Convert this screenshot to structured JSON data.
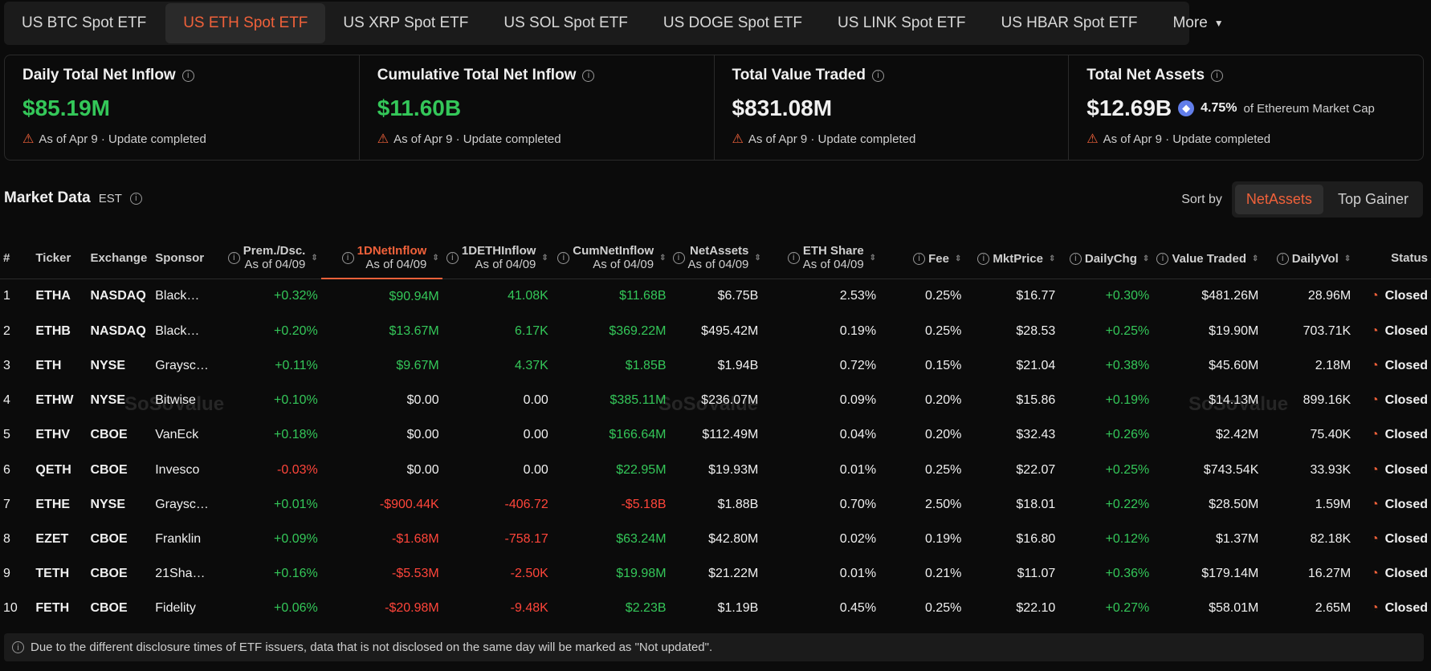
{
  "tabs": [
    {
      "label": "US BTC Spot ETF",
      "active": false
    },
    {
      "label": "US ETH Spot ETF",
      "active": true
    },
    {
      "label": "US XRP Spot ETF",
      "active": false
    },
    {
      "label": "US SOL Spot ETF",
      "active": false
    },
    {
      "label": "US DOGE Spot ETF",
      "active": false
    },
    {
      "label": "US LINK Spot ETF",
      "active": false
    },
    {
      "label": "US HBAR Spot ETF",
      "active": false
    },
    {
      "label": "More",
      "active": false
    }
  ],
  "summary": [
    {
      "title": "Daily Total Net Inflow",
      "value": "$85.19M",
      "color": "green",
      "status": "As of Apr 9 · Update completed"
    },
    {
      "title": "Cumulative Total Net Inflow",
      "value": "$11.60B",
      "color": "green",
      "status": "As of Apr 9 · Update completed"
    },
    {
      "title": "Total Value Traded",
      "value": "$831.08M",
      "color": "white",
      "status": "As of Apr 9 · Update completed"
    },
    {
      "title": "Total Net Assets",
      "value": "$12.69B",
      "color": "white",
      "extra_pct": "4.75%",
      "extra_text": "of Ethereum Market Cap",
      "status": "As of Apr 9 · Update completed"
    }
  ],
  "market": {
    "title": "Market Data",
    "timezone": "EST"
  },
  "sort": {
    "label": "Sort by",
    "options": [
      "NetAssets",
      "Top Gainer"
    ],
    "active": "NetAssets"
  },
  "columns": [
    {
      "key": "num",
      "label": "#"
    },
    {
      "key": "ticker",
      "label": "Ticker"
    },
    {
      "key": "exchange",
      "label": "Exchange"
    },
    {
      "key": "sponsor",
      "label": "Sponsor"
    },
    {
      "key": "prem",
      "label": "Prem./Dsc.",
      "sub": "As of 04/09"
    },
    {
      "key": "netinflow",
      "label": "1DNetInflow",
      "sub": "As of 04/09"
    },
    {
      "key": "ethinflow",
      "label": "1DETHInflow",
      "sub": "As of 04/09"
    },
    {
      "key": "cum",
      "label": "CumNetInflow",
      "sub": "As of 04/09"
    },
    {
      "key": "assets",
      "label": "NetAssets",
      "sub": "As of 04/09"
    },
    {
      "key": "share",
      "label": "ETH Share",
      "sub": "As of 04/09"
    },
    {
      "key": "fee",
      "label": "Fee"
    },
    {
      "key": "price",
      "label": "MktPrice"
    },
    {
      "key": "chg",
      "label": "DailyChg"
    },
    {
      "key": "traded",
      "label": "Value Traded"
    },
    {
      "key": "vol",
      "label": "DailyVol"
    },
    {
      "key": "status",
      "label": "Status"
    }
  ],
  "rows": [
    {
      "num": "1",
      "ticker": "ETHA",
      "exchange": "NASDAQ",
      "sponsor": "Black…",
      "prem": "+0.32%",
      "netinflow": "$90.94M",
      "ethinflow": "41.08K",
      "cum": "$11.68B",
      "assets": "$6.75B",
      "share": "2.53%",
      "fee": "0.25%",
      "price": "$16.77",
      "chg": "+0.30%",
      "traded": "$481.26M",
      "vol": "28.96M",
      "status": "Closed"
    },
    {
      "num": "2",
      "ticker": "ETHB",
      "exchange": "NASDAQ",
      "sponsor": "Black…",
      "prem": "+0.20%",
      "netinflow": "$13.67M",
      "ethinflow": "6.17K",
      "cum": "$369.22M",
      "assets": "$495.42M",
      "share": "0.19%",
      "fee": "0.25%",
      "price": "$28.53",
      "chg": "+0.25%",
      "traded": "$19.90M",
      "vol": "703.71K",
      "status": "Closed"
    },
    {
      "num": "3",
      "ticker": "ETH",
      "exchange": "NYSE",
      "sponsor": "Graysc…",
      "prem": "+0.11%",
      "netinflow": "$9.67M",
      "ethinflow": "4.37K",
      "cum": "$1.85B",
      "assets": "$1.94B",
      "share": "0.72%",
      "fee": "0.15%",
      "price": "$21.04",
      "chg": "+0.38%",
      "traded": "$45.60M",
      "vol": "2.18M",
      "status": "Closed"
    },
    {
      "num": "4",
      "ticker": "ETHW",
      "exchange": "NYSE",
      "sponsor": "Bitwise",
      "prem": "+0.10%",
      "netinflow": "$0.00",
      "ethinflow": "0.00",
      "cum": "$385.11M",
      "assets": "$236.07M",
      "share": "0.09%",
      "fee": "0.20%",
      "price": "$15.86",
      "chg": "+0.19%",
      "traded": "$14.13M",
      "vol": "899.16K",
      "status": "Closed"
    },
    {
      "num": "5",
      "ticker": "ETHV",
      "exchange": "CBOE",
      "sponsor": "VanEck",
      "prem": "+0.18%",
      "netinflow": "$0.00",
      "ethinflow": "0.00",
      "cum": "$166.64M",
      "assets": "$112.49M",
      "share": "0.04%",
      "fee": "0.20%",
      "price": "$32.43",
      "chg": "+0.26%",
      "traded": "$2.42M",
      "vol": "75.40K",
      "status": "Closed"
    },
    {
      "num": "6",
      "ticker": "QETH",
      "exchange": "CBOE",
      "sponsor": "Invesco",
      "prem": "-0.03%",
      "netinflow": "$0.00",
      "ethinflow": "0.00",
      "cum": "$22.95M",
      "assets": "$19.93M",
      "share": "0.01%",
      "fee": "0.25%",
      "price": "$22.07",
      "chg": "+0.25%",
      "traded": "$743.54K",
      "vol": "33.93K",
      "status": "Closed"
    },
    {
      "num": "7",
      "ticker": "ETHE",
      "exchange": "NYSE",
      "sponsor": "Graysc…",
      "prem": "+0.01%",
      "netinflow": "-$900.44K",
      "ethinflow": "-406.72",
      "cum": "-$5.18B",
      "assets": "$1.88B",
      "share": "0.70%",
      "fee": "2.50%",
      "price": "$18.01",
      "chg": "+0.22%",
      "traded": "$28.50M",
      "vol": "1.59M",
      "status": "Closed"
    },
    {
      "num": "8",
      "ticker": "EZET",
      "exchange": "CBOE",
      "sponsor": "Franklin",
      "prem": "+0.09%",
      "netinflow": "-$1.68M",
      "ethinflow": "-758.17",
      "cum": "$63.24M",
      "assets": "$42.80M",
      "share": "0.02%",
      "fee": "0.19%",
      "price": "$16.80",
      "chg": "+0.12%",
      "traded": "$1.37M",
      "vol": "82.18K",
      "status": "Closed"
    },
    {
      "num": "9",
      "ticker": "TETH",
      "exchange": "CBOE",
      "sponsor": "21Sha…",
      "prem": "+0.16%",
      "netinflow": "-$5.53M",
      "ethinflow": "-2.50K",
      "cum": "$19.98M",
      "assets": "$21.22M",
      "share": "0.01%",
      "fee": "0.21%",
      "price": "$11.07",
      "chg": "+0.36%",
      "traded": "$179.14M",
      "vol": "16.27M",
      "status": "Closed"
    },
    {
      "num": "10",
      "ticker": "FETH",
      "exchange": "CBOE",
      "sponsor": "Fidelity",
      "prem": "+0.06%",
      "netinflow": "-$20.98M",
      "ethinflow": "-9.48K",
      "cum": "$2.23B",
      "assets": "$1.19B",
      "share": "0.45%",
      "fee": "0.25%",
      "price": "$22.10",
      "chg": "+0.27%",
      "traded": "$58.01M",
      "vol": "2.65M",
      "status": "Closed"
    }
  ],
  "footer": {
    "text": "Due to the different disclosure times of ETF issuers, data that is not disclosed on the same day will be marked as \"Not updated\"."
  },
  "colors": {
    "accent": "#f0613a",
    "positive": "#34c759",
    "negative": "#ff453a",
    "background": "#0b0b0b"
  },
  "watermark": {
    "text": "SoSoValue"
  }
}
